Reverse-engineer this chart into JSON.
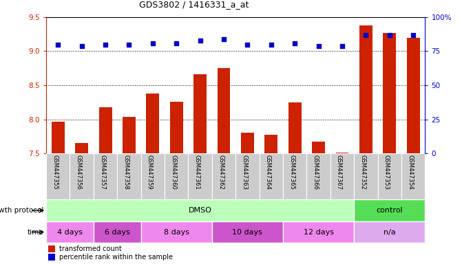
{
  "title": "GDS3802 / 1416331_a_at",
  "samples": [
    "GSM447355",
    "GSM447356",
    "GSM447357",
    "GSM447358",
    "GSM447359",
    "GSM447360",
    "GSM447361",
    "GSM447362",
    "GSM447363",
    "GSM447364",
    "GSM447365",
    "GSM447366",
    "GSM447367",
    "GSM447352",
    "GSM447353",
    "GSM447354"
  ],
  "bar_values": [
    7.97,
    7.65,
    8.18,
    8.04,
    8.38,
    8.26,
    8.66,
    8.75,
    7.8,
    7.77,
    8.25,
    7.67,
    7.51,
    9.38,
    9.27,
    9.2
  ],
  "dot_values": [
    80,
    79,
    80,
    80,
    81,
    81,
    83,
    84,
    80,
    80,
    81,
    79,
    79,
    87,
    87,
    87
  ],
  "bar_color": "#cc2200",
  "dot_color": "#0000cc",
  "ylim_left": [
    7.5,
    9.5
  ],
  "ylim_right": [
    0,
    100
  ],
  "yticks_left": [
    7.5,
    8.0,
    8.5,
    9.0,
    9.5
  ],
  "yticks_right": [
    0,
    25,
    50,
    75,
    100
  ],
  "ytick_right_labels": [
    "0",
    "25",
    "50",
    "75",
    "100%"
  ],
  "grid_lines": [
    8.0,
    8.5,
    9.0
  ],
  "growth_protocol_groups": [
    {
      "label": "DMSO",
      "start": 0,
      "end": 13,
      "color": "#bbffbb"
    },
    {
      "label": "control",
      "start": 13,
      "end": 16,
      "color": "#55dd55"
    }
  ],
  "time_groups": [
    {
      "label": "4 days",
      "start": 0,
      "end": 2
    },
    {
      "label": "6 days",
      "start": 2,
      "end": 4
    },
    {
      "label": "8 days",
      "start": 4,
      "end": 7
    },
    {
      "label": "10 days",
      "start": 7,
      "end": 10
    },
    {
      "label": "12 days",
      "start": 10,
      "end": 13
    },
    {
      "label": "n/a",
      "start": 13,
      "end": 16
    }
  ],
  "time_colors": [
    "#ee88ee",
    "#dd66dd",
    "#ee88ee",
    "#dd66dd",
    "#ee88ee",
    "#ddaaee"
  ],
  "legend_bar_label": "transformed count",
  "legend_dot_label": "percentile rank within the sample",
  "xlabel_growth": "growth protocol",
  "xlabel_time": "time",
  "bg_xtick": "#cccccc",
  "bg_xtick_alt": "#bbbbbb"
}
